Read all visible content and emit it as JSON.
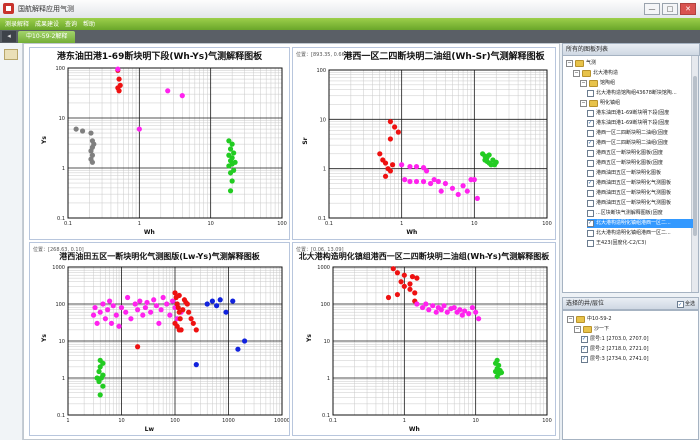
{
  "app": {
    "title": "国航解释应用气测",
    "window_buttons": [
      "—",
      "□",
      "✕"
    ]
  },
  "menu": {
    "items": [
      "测录解释",
      "成果建设",
      "查询",
      "帮助"
    ]
  },
  "tabs": {
    "active": "中10-59-2解释",
    "arrow": "◂"
  },
  "colors": {
    "red": "#ee1111",
    "magenta": "#ff22ee",
    "green": "#22cc22",
    "blue": "#1122dd",
    "gray": "#808080",
    "grid_major": "#1a1a1a",
    "grid_minor": "#c9c9c9"
  },
  "charts": [
    {
      "title": "港东油田港1-69断块明下段(Wh-Ys)气测解释图板",
      "pos": "",
      "xlabel": "Wh",
      "ylabel": "Ys",
      "xticks": [
        "0.1",
        "1",
        "10",
        "100"
      ],
      "yticks": [
        "0.1",
        "1",
        "10",
        "100"
      ]
    },
    {
      "title": "港西一区二四断块明二油组(Wh-Sr)气测解释图板",
      "pos": "位置：[893.35, 0.66]",
      "xlabel": "Wh",
      "ylabel": "Sr",
      "xticks": [
        "0.1",
        "1",
        "10",
        "100"
      ],
      "yticks": [
        "0.1",
        "1",
        "10",
        "100"
      ]
    },
    {
      "title": "港西油田五区一断块明化气测图版(Lw-Ys)气测解释图板",
      "pos": "位置：[268.63, 0.10]",
      "xlabel": "Lw",
      "ylabel": "Ys",
      "xticks": [
        "1",
        "10",
        "100",
        "1000",
        "10000"
      ],
      "yticks": [
        "0.1",
        "1",
        "10",
        "100",
        "1000"
      ]
    },
    {
      "title": "北大港构造明化镇组港西一区二四断块明二油组(Wh-Ys)气测解释图板",
      "pos": "位置：[0.06, 13.09]",
      "xlabel": "Wh",
      "ylabel": "Ys",
      "xticks": [
        "0.1",
        "1",
        "10",
        "100"
      ],
      "yticks": [
        "0.1",
        "1",
        "10",
        "100",
        "1000"
      ]
    }
  ],
  "chart_data": [
    {
      "type": "scatter",
      "title": "港东油田港1-69断块明下段(Wh-Ys)气测解释图板",
      "xlabel": "Wh",
      "ylabel": "Ys",
      "xscale": "log",
      "yscale": "log",
      "xlim": [
        0.1,
        100
      ],
      "ylim": [
        0.1,
        100
      ],
      "grid": true,
      "series": [
        {
          "color": "#808080",
          "points": [
            [
              0.13,
              6
            ],
            [
              0.16,
              5.5
            ],
            [
              0.21,
              5
            ],
            [
              0.22,
              3.5
            ],
            [
              0.23,
              3
            ],
            [
              0.22,
              2.6
            ],
            [
              0.21,
              2.2
            ],
            [
              0.22,
              1.8
            ],
            [
              0.21,
              1.5
            ],
            [
              0.22,
              1.3
            ]
          ]
        },
        {
          "color": "#ee1111",
          "points": [
            [
              0.5,
              90
            ],
            [
              0.52,
              60
            ],
            [
              0.54,
              45
            ],
            [
              0.5,
              40
            ],
            [
              0.52,
              35
            ]
          ]
        },
        {
          "color": "#ff22ee",
          "points": [
            [
              0.5,
              95
            ],
            [
              2.5,
              35
            ],
            [
              4,
              28
            ],
            [
              1,
              6
            ]
          ]
        },
        {
          "color": "#22cc22",
          "points": [
            [
              18,
              3.5
            ],
            [
              20,
              3
            ],
            [
              19,
              2.4
            ],
            [
              21,
              2
            ],
            [
              18,
              1.8
            ],
            [
              20,
              1.6
            ],
            [
              19,
              1.4
            ],
            [
              22,
              1.3
            ],
            [
              20,
              1.2
            ],
            [
              18,
              1.1
            ],
            [
              21,
              0.9
            ],
            [
              19,
              0.8
            ],
            [
              20,
              0.55
            ],
            [
              19,
              0.35
            ]
          ]
        }
      ]
    },
    {
      "type": "scatter",
      "title": "港西一区二四断块明二油组(Wh-Sr)气测解释图板",
      "xlabel": "Wh",
      "ylabel": "Sr",
      "xscale": "log",
      "yscale": "log",
      "xlim": [
        0.1,
        100
      ],
      "ylim": [
        0.1,
        100
      ],
      "grid": true,
      "series": [
        {
          "color": "#ee1111",
          "points": [
            [
              0.7,
              9
            ],
            [
              0.8,
              7
            ],
            [
              0.9,
              5.5
            ],
            [
              0.7,
              4
            ],
            [
              0.5,
              2
            ],
            [
              0.55,
              1.5
            ],
            [
              0.6,
              1.3
            ],
            [
              0.75,
              1.2
            ],
            [
              0.65,
              1
            ],
            [
              0.7,
              0.9
            ],
            [
              0.6,
              0.7
            ]
          ]
        },
        {
          "color": "#ff22ee",
          "points": [
            [
              1,
              1.2
            ],
            [
              1.3,
              1.1
            ],
            [
              1.6,
              1.1
            ],
            [
              2,
              1.05
            ],
            [
              2.2,
              0.9
            ],
            [
              1.1,
              0.6
            ],
            [
              1.3,
              0.55
            ],
            [
              1.6,
              0.55
            ],
            [
              2,
              0.55
            ],
            [
              2.5,
              0.5
            ],
            [
              2.8,
              0.6
            ],
            [
              3.2,
              0.55
            ],
            [
              4,
              0.5
            ],
            [
              3.5,
              0.35
            ],
            [
              5,
              0.4
            ],
            [
              6,
              0.3
            ],
            [
              7,
              0.45
            ],
            [
              8,
              0.35
            ],
            [
              9,
              0.6
            ],
            [
              10,
              0.6
            ],
            [
              11,
              0.25
            ]
          ]
        },
        {
          "color": "#22cc22",
          "points": [
            [
              13,
              2
            ],
            [
              14,
              1.8
            ],
            [
              15,
              1.7
            ],
            [
              16,
              1.9
            ],
            [
              14,
              1.5
            ],
            [
              15,
              1.4
            ],
            [
              16,
              1.3
            ],
            [
              17,
              1.2
            ],
            [
              18,
              1.5
            ],
            [
              19,
              1.2
            ],
            [
              20,
              1.35
            ]
          ]
        }
      ]
    },
    {
      "type": "scatter",
      "title": "港西油田五区一断块明化气测图版(Lw-Ys)气测解释图板",
      "xlabel": "Lw",
      "ylabel": "Ys",
      "xscale": "log",
      "yscale": "log",
      "xlim": [
        1,
        10000
      ],
      "ylim": [
        0.1,
        1000
      ],
      "grid": true,
      "series": [
        {
          "color": "#ff22ee",
          "points": [
            [
              3,
              50
            ],
            [
              3.2,
              80
            ],
            [
              3.5,
              30
            ],
            [
              4,
              60
            ],
            [
              4.5,
              100
            ],
            [
              5,
              40
            ],
            [
              5.5,
              70
            ],
            [
              6,
              120
            ],
            [
              6.5,
              30
            ],
            [
              7,
              90
            ],
            [
              8,
              50
            ],
            [
              9,
              25
            ],
            [
              10,
              80
            ],
            [
              12,
              60
            ],
            [
              13,
              150
            ],
            [
              15,
              40
            ],
            [
              18,
              100
            ],
            [
              20,
              70
            ],
            [
              22,
              120
            ],
            [
              25,
              50
            ],
            [
              28,
              80
            ],
            [
              30,
              110
            ],
            [
              35,
              60
            ],
            [
              40,
              130
            ],
            [
              45,
              90
            ],
            [
              50,
              30
            ],
            [
              55,
              70
            ],
            [
              60,
              150
            ],
            [
              70,
              100
            ],
            [
              80,
              50
            ],
            [
              90,
              120
            ],
            [
              100,
              80
            ],
            [
              110,
              40
            ],
            [
              130,
              60
            ]
          ]
        },
        {
          "color": "#ee1111",
          "points": [
            [
              20,
              7
            ],
            [
              100,
              200
            ],
            [
              105,
              150
            ],
            [
              110,
              100
            ],
            [
              115,
              80
            ],
            [
              120,
              60
            ],
            [
              125,
              40
            ],
            [
              100,
              30
            ],
            [
              110,
              25
            ],
            [
              120,
              20
            ],
            [
              130,
              20
            ],
            [
              150,
              130
            ],
            [
              160,
              110
            ],
            [
              170,
              100
            ],
            [
              180,
              60
            ],
            [
              200,
              40
            ],
            [
              220,
              30
            ],
            [
              250,
              20
            ],
            [
              120,
              170
            ],
            [
              140,
              70
            ]
          ]
        },
        {
          "color": "#1122dd",
          "points": [
            [
              400,
              100
            ],
            [
              500,
              120
            ],
            [
              600,
              90
            ],
            [
              700,
              130
            ],
            [
              900,
              60
            ],
            [
              1200,
              120
            ],
            [
              2000,
              10
            ],
            [
              1500,
              6
            ],
            [
              250,
              2.3
            ]
          ]
        },
        {
          "color": "#22cc22",
          "points": [
            [
              4,
              3
            ],
            [
              4.5,
              2.5
            ],
            [
              4,
              2
            ],
            [
              3.8,
              1.5
            ],
            [
              4.5,
              1.2
            ],
            [
              4.2,
              1
            ],
            [
              3.5,
              1
            ],
            [
              3.8,
              0.8
            ],
            [
              4.5,
              0.6
            ],
            [
              4,
              0.35
            ]
          ]
        }
      ]
    },
    {
      "type": "scatter",
      "title": "北大港构造明化镇组港西一区二四断块明二油组(Wh-Ys)气测解释图板",
      "xlabel": "Wh",
      "ylabel": "Ys",
      "xscale": "log",
      "yscale": "log",
      "xlim": [
        0.1,
        100
      ],
      "ylim": [
        0.1,
        1000
      ],
      "grid": true,
      "series": [
        {
          "color": "#ee1111",
          "points": [
            [
              0.7,
              900
            ],
            [
              0.8,
              700
            ],
            [
              1,
              600
            ],
            [
              1.3,
              550
            ],
            [
              0.9,
              400
            ],
            [
              1.2,
              350
            ],
            [
              1.5,
              500
            ],
            [
              1,
              300
            ],
            [
              1.2,
              250
            ],
            [
              1.4,
              200
            ],
            [
              0.8,
              180
            ],
            [
              0.6,
              150
            ],
            [
              1.4,
              120
            ]
          ]
        },
        {
          "color": "#ff22ee",
          "points": [
            [
              1.5,
              100
            ],
            [
              1.8,
              80
            ],
            [
              2,
              100
            ],
            [
              2.2,
              70
            ],
            [
              2.5,
              90
            ],
            [
              2.8,
              60
            ],
            [
              3,
              80
            ],
            [
              3.3,
              70
            ],
            [
              3.6,
              90
            ],
            [
              4,
              60
            ],
            [
              4.5,
              75
            ],
            [
              5,
              80
            ],
            [
              5.5,
              60
            ],
            [
              6,
              70
            ],
            [
              6.5,
              50
            ],
            [
              7,
              65
            ],
            [
              8,
              55
            ],
            [
              9,
              80
            ],
            [
              10,
              60
            ],
            [
              11,
              40
            ]
          ]
        },
        {
          "color": "#22cc22",
          "points": [
            [
              19,
              2.5
            ],
            [
              20,
              3
            ],
            [
              21,
              2.2
            ],
            [
              20,
              1.8
            ],
            [
              22,
              1.6
            ],
            [
              19,
              1.5
            ],
            [
              21,
              1.3
            ],
            [
              23,
              1.4
            ],
            [
              20,
              1.1
            ]
          ]
        }
      ]
    }
  ],
  "sidebar": {
    "panel1_title": "所有的图板列表",
    "tree": [
      {
        "level": 0,
        "type": "root",
        "label": "气测",
        "toggle": "−"
      },
      {
        "level": 1,
        "type": "folder",
        "label": "北大港构造",
        "toggle": "−"
      },
      {
        "level": 2,
        "type": "folder",
        "label": "馆陶组",
        "toggle": "−"
      },
      {
        "level": 3,
        "type": "item",
        "label": "北大港构造馆陶组43678断块馆陶...",
        "checked": false
      },
      {
        "level": 2,
        "type": "folder",
        "label": "明化镇组",
        "toggle": "−"
      },
      {
        "level": 3,
        "type": "item",
        "label": "港东油田港1-69断块明下段(固度",
        "checked": false
      },
      {
        "level": 3,
        "type": "item",
        "label": "港东油田港1-69断块明下段(固度",
        "checked": true
      },
      {
        "level": 3,
        "type": "item",
        "label": "港西一区二四断块明二油组(固度",
        "checked": false
      },
      {
        "level": 3,
        "type": "item",
        "label": "港西一区二四断块明二油组(固度",
        "checked": true
      },
      {
        "level": 3,
        "type": "item",
        "label": "港西五区一断块明化图板(固度",
        "checked": false
      },
      {
        "level": 3,
        "type": "item",
        "label": "港西五区一断块明化图板(固度",
        "checked": false
      },
      {
        "level": 3,
        "type": "item",
        "label": "港西油田五区一断块明化图板",
        "checked": false
      },
      {
        "level": 3,
        "type": "item",
        "label": "港西油田五区一断块明化气测图板",
        "checked": true
      },
      {
        "level": 3,
        "type": "item",
        "label": "港西油田五区一断块明化气测图板",
        "checked": false
      },
      {
        "level": 3,
        "type": "item",
        "label": "港西油田五区一断块明化气测图板",
        "checked": false
      },
      {
        "level": 3,
        "type": "item",
        "label": "...区块断块气测解释图板(固度",
        "checked": false
      },
      {
        "level": 3,
        "type": "item",
        "label": "北大港构造明化镇组港西一区二...",
        "checked": true,
        "selected": true
      },
      {
        "level": 3,
        "type": "item",
        "label": "北大港构造明化镇组港西一区二...",
        "checked": false
      },
      {
        "level": 3,
        "type": "item",
        "label": "王423(固度化-C2/C3)",
        "checked": false
      }
    ],
    "panel2_title": "选择的井/层位",
    "select_all": "全选",
    "layers": [
      {
        "level": 0,
        "type": "folder",
        "label": "中10-59-2",
        "toggle": "−"
      },
      {
        "level": 1,
        "type": "folder",
        "label": "沙一下",
        "toggle": "−"
      },
      {
        "level": 2,
        "type": "item",
        "label": "层号:1 [2703.0, 2707.0]",
        "checked": true
      },
      {
        "level": 2,
        "type": "item",
        "label": "层号:2 [2718.0, 2721.0]",
        "checked": true
      },
      {
        "level": 2,
        "type": "item",
        "label": "层号:3 [2734.0, 2741.0]",
        "checked": true
      }
    ]
  }
}
